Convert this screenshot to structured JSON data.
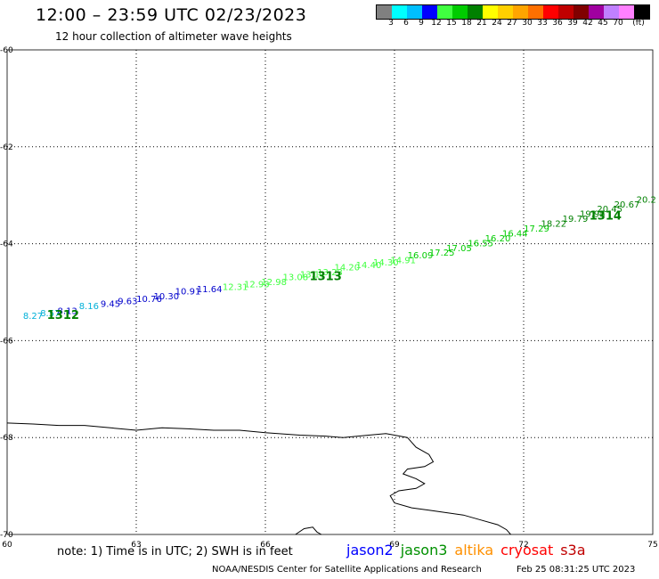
{
  "title": "12:00 – 23:59 UTC 02/23/2023",
  "subtitle": "12 hour collection of altimeter wave heights",
  "colorbar": {
    "colors": [
      "#808080",
      "#00ffff",
      "#00bfff",
      "#0000ff",
      "#40ff40",
      "#00cc00",
      "#008000",
      "#ffff00",
      "#ffd000",
      "#ffa500",
      "#ff7000",
      "#ff0000",
      "#c00000",
      "#800000",
      "#a000a0",
      "#c080ff",
      "#ff80ff",
      "#000000"
    ],
    "labels": [
      "3",
      "6",
      "9",
      "12",
      "15",
      "18",
      "21",
      "24",
      "27",
      "30",
      "33",
      "36",
      "39",
      "42",
      "45",
      "70",
      "(ft)"
    ]
  },
  "axes": {
    "x_ticks": [
      "60",
      "63",
      "66",
      "69",
      "72",
      "75"
    ],
    "y_ticks": [
      "-60",
      "-62",
      "-64",
      "-66",
      "-68",
      "-70"
    ],
    "xlim": [
      60,
      75
    ],
    "ylim": [
      -70,
      -60
    ]
  },
  "chart_data": {
    "type": "scatter",
    "title": "12:00 – 23:59 UTC 02/23/2023",
    "subtitle": "12 hour collection of altimeter wave heights",
    "xlabel": "",
    "ylabel": "",
    "xlim": [
      60,
      75
    ],
    "ylim": [
      -70,
      -60
    ],
    "grid": true,
    "pass_labels": [
      {
        "text": "1312",
        "lon": 61.3,
        "lat": -65.55
      },
      {
        "text": "1313",
        "lon": 67.4,
        "lat": -64.75
      },
      {
        "text": "1314",
        "lon": 73.9,
        "lat": -63.5
      }
    ],
    "series": [
      {
        "name": "jason3",
        "points": [
          {
            "lon": 60.6,
            "lat": -65.55,
            "v": "8.27",
            "color": "#00b0d8"
          },
          {
            "lon": 61.0,
            "lat": -65.5,
            "v": "8.57",
            "color": "#00b0d8"
          },
          {
            "lon": 61.4,
            "lat": -65.45,
            "v": "8.13",
            "color": "#0000cc"
          },
          {
            "lon": 61.9,
            "lat": -65.35,
            "v": "8.16",
            "color": "#00b0d8"
          },
          {
            "lon": 62.4,
            "lat": -65.3,
            "v": "9.45",
            "color": "#0000cc"
          },
          {
            "lon": 62.8,
            "lat": -65.25,
            "v": "9.63",
            "color": "#0000cc"
          },
          {
            "lon": 63.3,
            "lat": -65.2,
            "v": "10.76",
            "color": "#0000cc"
          },
          {
            "lon": 63.7,
            "lat": -65.15,
            "v": "10.30",
            "color": "#0000cc"
          },
          {
            "lon": 64.2,
            "lat": -65.05,
            "v": "10.91",
            "color": "#0000cc"
          },
          {
            "lon": 64.7,
            "lat": -65.0,
            "v": "11.64",
            "color": "#0000cc"
          },
          {
            "lon": 65.3,
            "lat": -64.95,
            "v": "12.31",
            "color": "#40ff40"
          },
          {
            "lon": 65.8,
            "lat": -64.9,
            "v": "12.93",
            "color": "#40ff40"
          },
          {
            "lon": 66.2,
            "lat": -64.85,
            "v": "12.98",
            "color": "#40ff40"
          },
          {
            "lon": 66.7,
            "lat": -64.75,
            "v": "13.08",
            "color": "#40ff40"
          },
          {
            "lon": 67.1,
            "lat": -64.7,
            "v": "13.11",
            "color": "#40ff40"
          },
          {
            "lon": 67.5,
            "lat": -64.65,
            "v": "13.23",
            "color": "#40ff40"
          },
          {
            "lon": 67.9,
            "lat": -64.55,
            "v": "14.20",
            "color": "#40ff40"
          },
          {
            "lon": 68.4,
            "lat": -64.5,
            "v": "14.40",
            "color": "#40ff40"
          },
          {
            "lon": 68.8,
            "lat": -64.45,
            "v": "14.30",
            "color": "#40ff40"
          },
          {
            "lon": 69.2,
            "lat": -64.4,
            "v": "14.91",
            "color": "#40ff40"
          },
          {
            "lon": 69.6,
            "lat": -64.3,
            "v": "16.09",
            "color": "#00cc00"
          },
          {
            "lon": 70.1,
            "lat": -64.25,
            "v": "17.25",
            "color": "#00cc00"
          },
          {
            "lon": 70.5,
            "lat": -64.15,
            "v": "17.05",
            "color": "#00cc00"
          },
          {
            "lon": 71.0,
            "lat": -64.05,
            "v": "16.55",
            "color": "#00cc00"
          },
          {
            "lon": 71.4,
            "lat": -63.95,
            "v": "16.20",
            "color": "#00cc00"
          },
          {
            "lon": 71.8,
            "lat": -63.85,
            "v": "16.44",
            "color": "#00cc00"
          },
          {
            "lon": 72.3,
            "lat": -63.75,
            "v": "17.29",
            "color": "#00cc00"
          },
          {
            "lon": 72.7,
            "lat": -63.65,
            "v": "18.22",
            "color": "#008000"
          },
          {
            "lon": 73.2,
            "lat": -63.55,
            "v": "19.79",
            "color": "#008000"
          },
          {
            "lon": 73.6,
            "lat": -63.45,
            "v": "19.95",
            "color": "#008000"
          },
          {
            "lon": 74.0,
            "lat": -63.35,
            "v": "20.45",
            "color": "#008000"
          },
          {
            "lon": 74.4,
            "lat": -63.25,
            "v": "20.67",
            "color": "#008000"
          },
          {
            "lon": 74.85,
            "lat": -63.15,
            "v": "20.2",
            "color": "#008000"
          }
        ]
      }
    ],
    "coastline": [
      [
        60,
        -67.7
      ],
      [
        60.6,
        -67.72
      ],
      [
        61.2,
        -67.75
      ],
      [
        61.8,
        -67.75
      ],
      [
        62.4,
        -67.8
      ],
      [
        63.0,
        -67.85
      ],
      [
        63.6,
        -67.8
      ],
      [
        64.2,
        -67.82
      ],
      [
        64.8,
        -67.85
      ],
      [
        65.4,
        -67.85
      ],
      [
        66.0,
        -67.9
      ],
      [
        66.8,
        -67.95
      ],
      [
        67.4,
        -67.97
      ],
      [
        67.8,
        -68.0
      ],
      [
        68.4,
        -67.95
      ],
      [
        68.8,
        -67.92
      ],
      [
        69.0,
        -67.95
      ],
      [
        69.3,
        -68.0
      ],
      [
        69.5,
        -68.2
      ],
      [
        69.8,
        -68.35
      ],
      [
        69.9,
        -68.5
      ],
      [
        69.7,
        -68.6
      ],
      [
        69.3,
        -68.65
      ],
      [
        69.2,
        -68.75
      ],
      [
        69.5,
        -68.85
      ],
      [
        69.7,
        -68.95
      ],
      [
        69.5,
        -69.05
      ],
      [
        69.1,
        -69.1
      ],
      [
        68.9,
        -69.2
      ],
      [
        69.0,
        -69.35
      ],
      [
        69.4,
        -69.45
      ],
      [
        69.8,
        -69.5
      ],
      [
        70.2,
        -69.55
      ],
      [
        70.6,
        -69.6
      ],
      [
        71.0,
        -69.7
      ],
      [
        71.4,
        -69.8
      ],
      [
        71.6,
        -69.9
      ],
      [
        71.7,
        -70.0
      ]
    ],
    "coastline2": [
      [
        66.7,
        -70.0
      ],
      [
        66.9,
        -69.88
      ],
      [
        67.1,
        -69.85
      ],
      [
        67.2,
        -69.95
      ],
      [
        67.3,
        -70.0
      ]
    ]
  },
  "note": "note: 1) Time is in UTC; 2) SWH is in feet",
  "satellites": [
    {
      "name": "jason2",
      "color": "#0000ff"
    },
    {
      "name": "jason3",
      "color": "#009000"
    },
    {
      "name": "altika",
      "color": "#ff9000"
    },
    {
      "name": "cryosat",
      "color": "#ff0000"
    },
    {
      "name": "s3a",
      "color": "#c00000"
    }
  ],
  "credit": "NOAA/NESDIS Center for Satellite Applications and Research",
  "timestamp": "Feb 25 08:31:25 UTC 2023"
}
